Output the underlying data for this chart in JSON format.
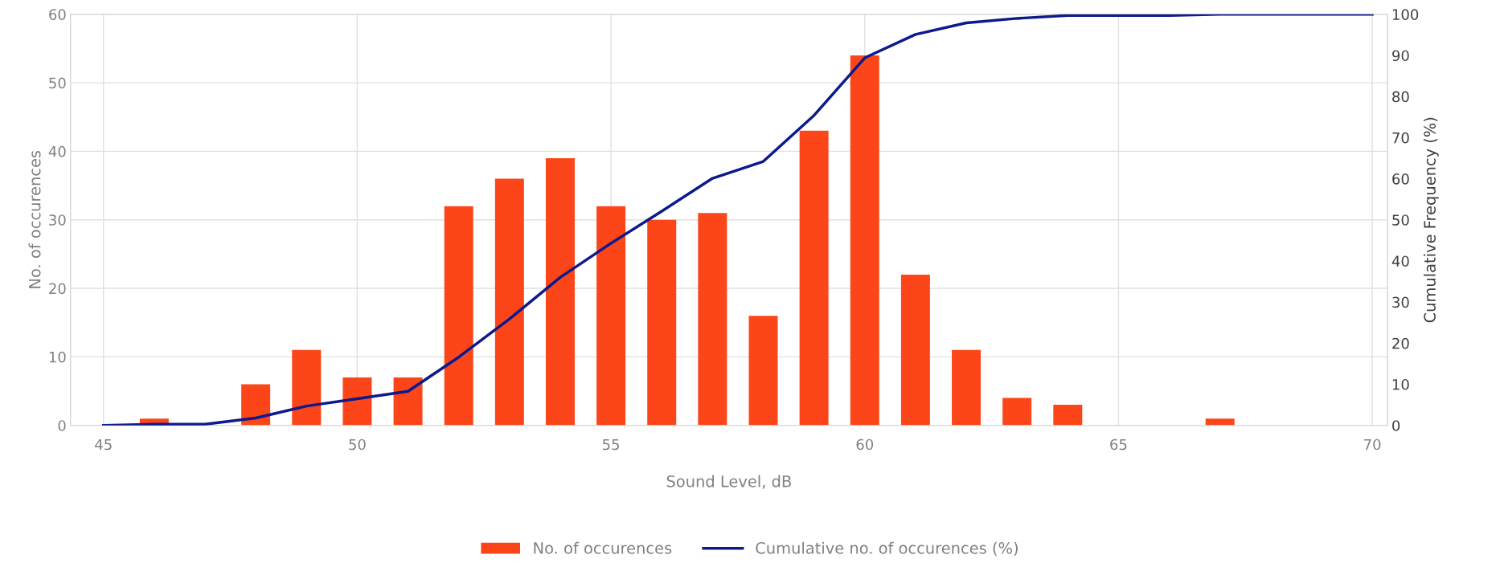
{
  "chart_data": {
    "type": "bar",
    "xlabel": "Sound Level, dB",
    "ylabel": "No. of occurences",
    "y2label": "Cumulative Frequency (%)",
    "xlim": [
      44.35,
      70.3
    ],
    "xticks": [
      45,
      50,
      55,
      60,
      65,
      70
    ],
    "ylim": [
      0,
      60
    ],
    "yticks": [
      0,
      10,
      20,
      30,
      40,
      50,
      60
    ],
    "y2lim": [
      0,
      100
    ],
    "y2ticks": [
      0,
      10,
      20,
      30,
      40,
      50,
      60,
      70,
      80,
      90,
      100
    ],
    "grid": true,
    "legend": "bottom",
    "series": [
      {
        "name": "No. of occurences",
        "color": "#fc4619",
        "x": [
          46,
          47,
          48,
          49,
          50,
          51,
          52,
          53,
          54,
          55,
          56,
          57,
          58,
          59,
          60,
          61,
          62,
          63,
          64,
          65,
          66,
          67
        ],
        "values": [
          1,
          0,
          6,
          11,
          7,
          7,
          32,
          36,
          39,
          32,
          30,
          31,
          16,
          43,
          54,
          22,
          11,
          4,
          3,
          0,
          0,
          1
        ]
      },
      {
        "name": "Cumulative no. of occurences (%)",
        "type": "line",
        "axis": "y2",
        "color": "#0c1a8c",
        "x": [
          45,
          46,
          47,
          48,
          49,
          50,
          51,
          52,
          53,
          54,
          55,
          56,
          57,
          58,
          59,
          60,
          61,
          62,
          63,
          64,
          65,
          66,
          67,
          68,
          69,
          70
        ],
        "values": [
          0,
          0.3,
          0.3,
          1.8,
          4.7,
          6.5,
          8.3,
          16.6,
          25.9,
          36.0,
          44.3,
          52.1,
          60.1,
          64.2,
          75.4,
          89.4,
          95.1,
          97.9,
          99.0,
          99.7,
          99.7,
          99.7,
          100,
          100,
          100,
          100
        ]
      }
    ]
  }
}
